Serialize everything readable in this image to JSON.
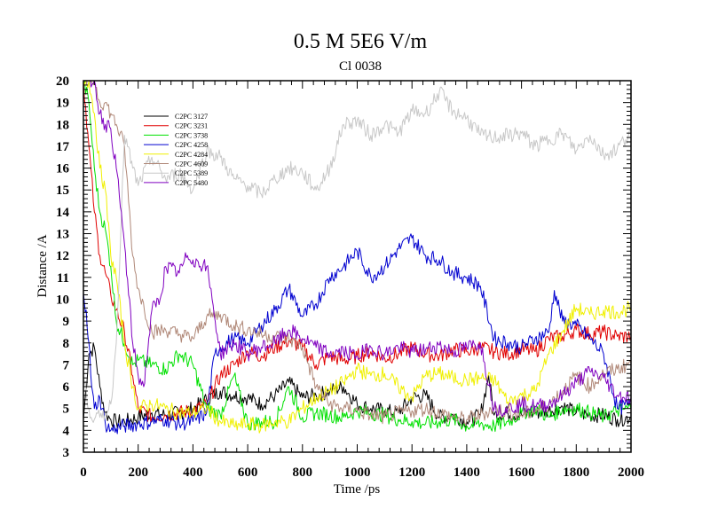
{
  "chart_data": {
    "type": "line",
    "title": "0.5 M 5E6 V/m",
    "subtitle": "Cl 0038",
    "xlabel": "Time /ps",
    "ylabel": "Distance /A",
    "xlim": [
      0,
      2000
    ],
    "ylim": [
      3,
      20
    ],
    "x_ticks": [
      0,
      200,
      400,
      600,
      800,
      1000,
      1200,
      1400,
      1600,
      1800,
      2000
    ],
    "y_ticks": [
      3,
      4,
      5,
      6,
      7,
      8,
      9,
      10,
      11,
      12,
      13,
      14,
      15,
      16,
      17,
      18,
      19,
      20
    ],
    "legend_position": "top-left",
    "series": [
      {
        "name": "C2PC 3127",
        "color": "#000000",
        "x": [
          0,
          20,
          40,
          60,
          80,
          100,
          120,
          150,
          200,
          250,
          300,
          350,
          400,
          450,
          500,
          550,
          600,
          650,
          700,
          750,
          800,
          850,
          900,
          950,
          1000,
          1050,
          1100,
          1150,
          1200,
          1250,
          1300,
          1350,
          1400,
          1450,
          1480,
          1500,
          1550,
          1600,
          1650,
          1700,
          1750,
          1800,
          1850,
          1900,
          1950,
          2000
        ],
        "values": [
          4.5,
          7.5,
          7.8,
          6.0,
          4.8,
          4.5,
          4.4,
          4.4,
          4.6,
          4.8,
          4.7,
          4.8,
          5.0,
          5.4,
          5.8,
          5.6,
          5.5,
          5.2,
          5.6,
          6.2,
          5.5,
          5.6,
          5.8,
          6.0,
          5.2,
          5.0,
          4.9,
          4.8,
          5.5,
          5.6,
          4.6,
          4.7,
          4.4,
          4.7,
          6.5,
          4.7,
          4.8,
          4.7,
          4.8,
          4.9,
          5.1,
          4.8,
          4.7,
          4.7,
          4.5,
          4.6
        ]
      },
      {
        "name": "C2PC 3231",
        "color": "#e00000",
        "x": [
          0,
          20,
          40,
          60,
          80,
          100,
          120,
          150,
          180,
          200,
          250,
          300,
          350,
          400,
          450,
          500,
          550,
          600,
          650,
          700,
          750,
          800,
          850,
          900,
          950,
          1000,
          1050,
          1100,
          1150,
          1200,
          1250,
          1300,
          1350,
          1400,
          1450,
          1500,
          1550,
          1600,
          1650,
          1700,
          1750,
          1800,
          1850,
          1900,
          1950,
          2000
        ],
        "values": [
          20,
          17,
          14,
          12,
          11.2,
          10.2,
          9.5,
          8.5,
          6.5,
          5.0,
          4.6,
          4.7,
          4.8,
          4.9,
          5.2,
          6.5,
          7.0,
          7.6,
          7.4,
          7.8,
          8.1,
          7.8,
          7.0,
          7.4,
          7.2,
          7.4,
          7.6,
          7.3,
          7.5,
          7.8,
          7.5,
          7.4,
          7.7,
          7.6,
          7.8,
          7.6,
          7.5,
          7.7,
          7.6,
          8.2,
          8.3,
          8.6,
          8.4,
          8.5,
          8.3,
          8.3
        ]
      },
      {
        "name": "C2PC 3738",
        "color": "#00e000",
        "x": [
          0,
          20,
          40,
          60,
          80,
          100,
          120,
          150,
          180,
          200,
          250,
          300,
          350,
          400,
          450,
          500,
          550,
          600,
          650,
          700,
          750,
          800,
          850,
          900,
          950,
          1000,
          1050,
          1100,
          1150,
          1200,
          1250,
          1300,
          1350,
          1400,
          1450,
          1500,
          1550,
          1600,
          1650,
          1700,
          1750,
          1800,
          1850,
          1900,
          1950,
          2000
        ],
        "values": [
          20,
          19,
          16,
          14,
          13.2,
          11.5,
          9.0,
          8.0,
          7.0,
          7.2,
          7.0,
          6.8,
          7.5,
          7.0,
          5.0,
          4.7,
          6.5,
          4.3,
          4.4,
          4.4,
          6.0,
          4.6,
          4.8,
          4.7,
          4.6,
          4.9,
          4.8,
          4.7,
          4.5,
          4.4,
          4.3,
          4.4,
          4.5,
          4.2,
          4.3,
          4.2,
          4.4,
          4.8,
          5.0,
          4.6,
          5.0,
          5.0,
          4.8,
          4.6,
          4.9,
          5.0
        ]
      },
      {
        "name": "C2PC 4258",
        "color": "#0000d0",
        "x": [
          0,
          10,
          20,
          30,
          40,
          60,
          80,
          100,
          120,
          150,
          200,
          250,
          300,
          350,
          400,
          450,
          480,
          500,
          550,
          600,
          650,
          700,
          750,
          800,
          850,
          900,
          950,
          1000,
          1050,
          1100,
          1150,
          1200,
          1250,
          1300,
          1350,
          1400,
          1450,
          1500,
          1550,
          1600,
          1650,
          1700,
          1720,
          1750,
          1800,
          1850,
          1900,
          1950,
          2000
        ],
        "values": [
          10.3,
          9.5,
          8.0,
          6.0,
          5.0,
          5.5,
          4.3,
          4.0,
          4.1,
          4.2,
          4.3,
          4.4,
          4.5,
          4.3,
          4.4,
          4.8,
          7.5,
          7.8,
          8.2,
          8.0,
          8.8,
          9.5,
          10.5,
          9.2,
          9.8,
          11.0,
          11.5,
          12.2,
          11.0,
          11.5,
          12.3,
          12.8,
          12.0,
          11.8,
          11.2,
          11.0,
          10.6,
          8.2,
          8.0,
          7.8,
          8.2,
          8.5,
          10.4,
          9.0,
          8.8,
          8.2,
          7.5,
          5.0,
          5.2
        ]
      },
      {
        "name": "C2PC 4284",
        "color": "#f0f000",
        "x": [
          0,
          20,
          40,
          60,
          80,
          100,
          120,
          150,
          180,
          200,
          250,
          300,
          350,
          400,
          450,
          500,
          550,
          600,
          650,
          700,
          750,
          800,
          850,
          900,
          950,
          1000,
          1050,
          1100,
          1150,
          1200,
          1250,
          1300,
          1350,
          1400,
          1450,
          1500,
          1550,
          1600,
          1650,
          1700,
          1750,
          1800,
          1850,
          1900,
          1950,
          2000
        ],
        "values": [
          20,
          20,
          18.5,
          16,
          15,
          12,
          11,
          8.0,
          6.0,
          5.0,
          5.2,
          5.0,
          4.8,
          4.8,
          5.0,
          4.4,
          4.2,
          4.3,
          4.2,
          4.4,
          4.4,
          5.0,
          5.5,
          5.8,
          6.2,
          6.8,
          6.5,
          6.6,
          6.0,
          5.5,
          6.5,
          6.6,
          6.4,
          6.3,
          6.4,
          6.3,
          5.3,
          5.6,
          5.8,
          7.5,
          8.5,
          9.6,
          9.3,
          9.5,
          9.4,
          9.6
        ]
      },
      {
        "name": "C2PC 4609",
        "color": "#b08878",
        "x": [
          0,
          20,
          40,
          60,
          80,
          100,
          120,
          150,
          180,
          200,
          250,
          300,
          350,
          400,
          450,
          500,
          550,
          600,
          650,
          700,
          750,
          800,
          850,
          900,
          950,
          1000,
          1050,
          1100,
          1150,
          1200,
          1250,
          1300,
          1350,
          1400,
          1450,
          1500,
          1550,
          1600,
          1650,
          1700,
          1750,
          1800,
          1850,
          1900,
          1950,
          2000
        ],
        "values": [
          20,
          20,
          20,
          19,
          19,
          18.5,
          18,
          17,
          12,
          10.5,
          8.5,
          8.6,
          8.4,
          8.2,
          9.2,
          9.3,
          8.8,
          8.6,
          8.4,
          8.3,
          8.2,
          7.8,
          6.0,
          5.2,
          5.0,
          4.9,
          4.7,
          4.6,
          4.8,
          4.9,
          5.0,
          4.8,
          4.6,
          4.5,
          4.7,
          5.0,
          4.8,
          4.7,
          4.9,
          5.2,
          5.8,
          6.5,
          6.0,
          6.6,
          6.8,
          7.1
        ]
      },
      {
        "name": "C2PC 5389",
        "color": "#c8c8c8",
        "x": [
          0,
          20,
          40,
          60,
          80,
          100,
          120,
          150,
          180,
          200,
          250,
          300,
          350,
          400,
          450,
          500,
          550,
          600,
          650,
          700,
          750,
          800,
          850,
          900,
          950,
          1000,
          1050,
          1100,
          1150,
          1200,
          1250,
          1300,
          1350,
          1400,
          1450,
          1500,
          1550,
          1600,
          1650,
          1700,
          1750,
          1800,
          1850,
          1900,
          1950,
          2000
        ],
        "values": [
          6.5,
          5.0,
          4.5,
          4.6,
          4.8,
          5.2,
          8.0,
          17.5,
          16.0,
          15.2,
          16.5,
          15.5,
          15.8,
          15.0,
          16.8,
          16.5,
          15.5,
          15.2,
          14.8,
          15.5,
          16.0,
          15.8,
          15.0,
          16.0,
          18.0,
          18.2,
          17.5,
          18.0,
          17.6,
          18.6,
          18.5,
          19.5,
          18.6,
          18.3,
          17.5,
          17.4,
          17.5,
          17.6,
          17.0,
          17.3,
          17.6,
          16.8,
          17.5,
          16.6,
          16.9,
          17.7
        ]
      },
      {
        "name": "C2PC 5480",
        "color": "#8000c0",
        "x": [
          0,
          20,
          40,
          60,
          80,
          100,
          120,
          150,
          180,
          200,
          220,
          250,
          280,
          300,
          350,
          380,
          400,
          450,
          470,
          500,
          550,
          600,
          650,
          700,
          750,
          800,
          850,
          900,
          950,
          1000,
          1050,
          1100,
          1150,
          1200,
          1250,
          1300,
          1350,
          1400,
          1450,
          1500,
          1550,
          1600,
          1650,
          1700,
          1750,
          1800,
          1850,
          1900,
          1950,
          2000
        ],
        "values": [
          20,
          20,
          20,
          18.5,
          18,
          17.8,
          16,
          12.5,
          8.0,
          6.5,
          6.0,
          9.5,
          10.0,
          11.5,
          11.2,
          12.0,
          11.8,
          11.5,
          10.0,
          7.5,
          8.0,
          7.5,
          7.8,
          8.0,
          8.6,
          8.2,
          7.8,
          7.5,
          7.6,
          7.4,
          7.8,
          7.5,
          7.8,
          7.6,
          7.7,
          7.9,
          7.6,
          7.8,
          8.0,
          5.0,
          5.0,
          5.2,
          5.1,
          5.2,
          5.6,
          6.2,
          6.7,
          6.4,
          5.6,
          5.5
        ]
      }
    ]
  }
}
